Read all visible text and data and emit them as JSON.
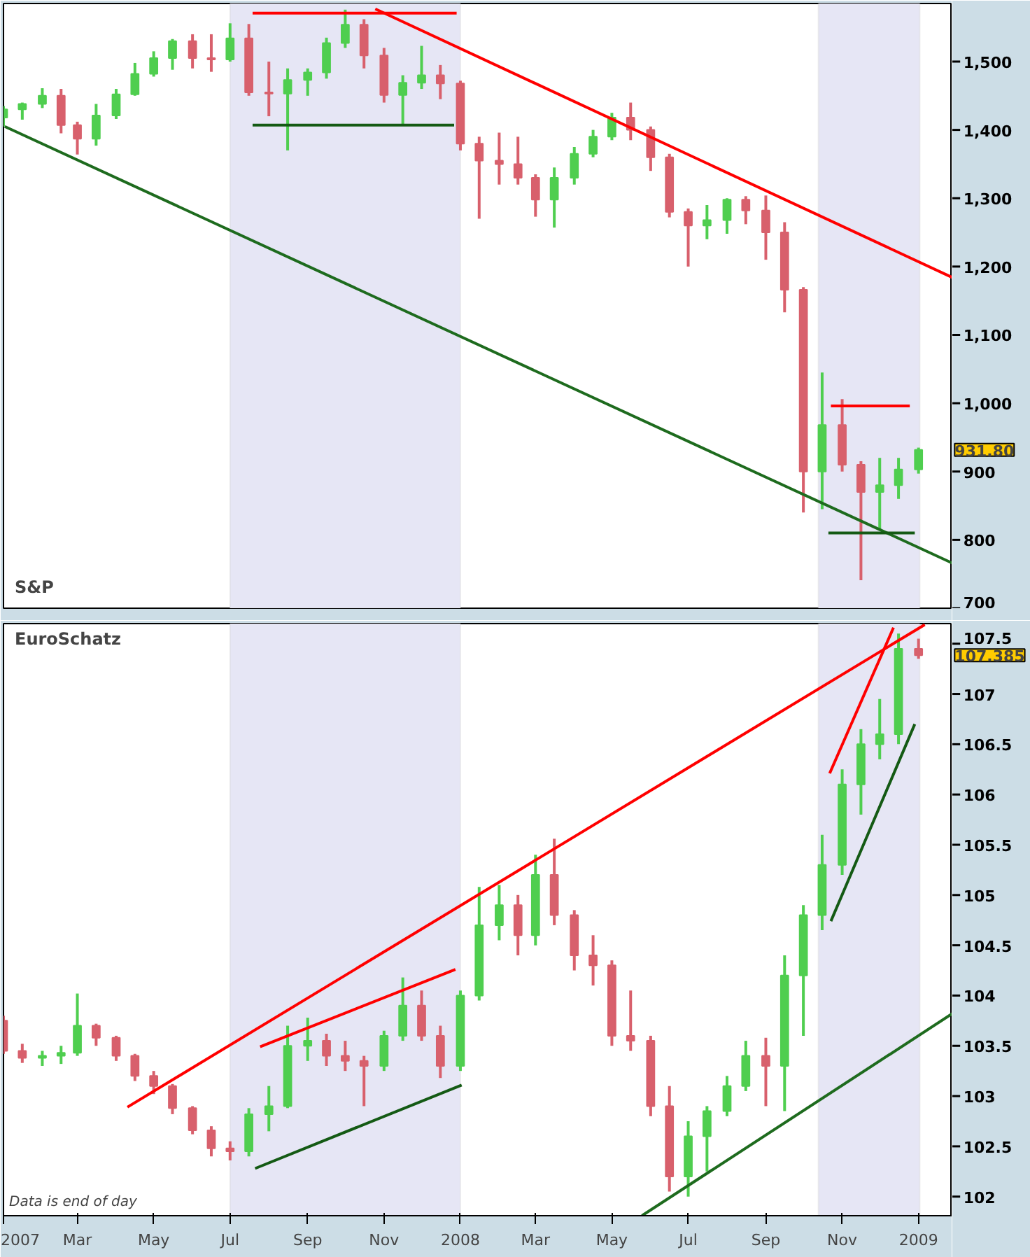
{
  "chart_data": [
    {
      "type": "candlestick",
      "title": "S&P",
      "tick_labels": "y",
      "grid": false,
      "x": [
        "2007-01-01",
        "2007-01-16",
        "2007-02-01",
        "2007-02-16",
        "2007-03-01",
        "2007-03-16",
        "2007-04-01",
        "2007-04-16",
        "2007-05-01",
        "2007-05-16",
        "2007-06-01",
        "2007-06-16",
        "2007-07-01",
        "2007-07-16",
        "2007-08-01",
        "2007-08-16",
        "2007-09-01",
        "2007-09-16",
        "2007-10-01",
        "2007-10-16",
        "2007-11-01",
        "2007-11-16",
        "2007-12-01",
        "2007-12-16",
        "2008-01-01",
        "2008-01-16",
        "2008-02-01",
        "2008-02-16",
        "2008-03-01",
        "2008-03-16",
        "2008-04-01",
        "2008-04-16",
        "2008-05-01",
        "2008-05-16",
        "2008-06-01",
        "2008-06-16",
        "2008-07-01",
        "2008-07-16",
        "2008-08-01",
        "2008-08-16",
        "2008-09-01",
        "2008-09-16",
        "2008-10-01",
        "2008-10-16",
        "2008-11-01",
        "2008-11-16",
        "2008-12-01",
        "2008-12-16",
        "2009-01-01"
      ],
      "ohlc": [
        [
          1418,
          1435,
          1405,
          1430
        ],
        [
          1430,
          1440,
          1415,
          1438
        ],
        [
          1438,
          1461,
          1432,
          1450
        ],
        [
          1450,
          1460,
          1395,
          1407
        ],
        [
          1407,
          1412,
          1364,
          1387
        ],
        [
          1387,
          1438,
          1377,
          1421
        ],
        [
          1421,
          1460,
          1416,
          1452
        ],
        [
          1452,
          1498,
          1450,
          1482
        ],
        [
          1482,
          1515,
          1478,
          1505
        ],
        [
          1505,
          1533,
          1488,
          1530
        ],
        [
          1530,
          1540,
          1490,
          1505
        ],
        [
          1505,
          1540,
          1485,
          1503
        ],
        [
          1503,
          1556,
          1500,
          1534
        ],
        [
          1534,
          1555,
          1450,
          1455
        ],
        [
          1455,
          1500,
          1420,
          1453
        ],
        [
          1453,
          1490,
          1370,
          1473
        ],
        [
          1473,
          1490,
          1450,
          1484
        ],
        [
          1484,
          1535,
          1475,
          1527
        ],
        [
          1527,
          1576,
          1520,
          1554
        ],
        [
          1554,
          1562,
          1490,
          1509
        ],
        [
          1509,
          1520,
          1440,
          1451
        ],
        [
          1451,
          1480,
          1407,
          1469
        ],
        [
          1469,
          1523,
          1460,
          1480
        ],
        [
          1480,
          1495,
          1445,
          1468
        ],
        [
          1468,
          1472,
          1370,
          1380
        ],
        [
          1380,
          1390,
          1270,
          1355
        ],
        [
          1355,
          1396,
          1320,
          1350
        ],
        [
          1350,
          1390,
          1320,
          1330
        ],
        [
          1330,
          1335,
          1273,
          1298
        ],
        [
          1298,
          1345,
          1257,
          1330
        ],
        [
          1330,
          1375,
          1320,
          1365
        ],
        [
          1365,
          1400,
          1360,
          1390
        ],
        [
          1390,
          1425,
          1385,
          1418
        ],
        [
          1418,
          1440,
          1385,
          1400
        ],
        [
          1400,
          1405,
          1340,
          1360
        ],
        [
          1360,
          1365,
          1272,
          1280
        ],
        [
          1280,
          1285,
          1200,
          1260
        ],
        [
          1260,
          1290,
          1240,
          1268
        ],
        [
          1268,
          1300,
          1248,
          1298
        ],
        [
          1298,
          1303,
          1262,
          1282
        ],
        [
          1282,
          1304,
          1210,
          1250
        ],
        [
          1250,
          1265,
          1133,
          1166
        ],
        [
          1166,
          1170,
          840,
          900
        ],
        [
          900,
          1045,
          845,
          968
        ],
        [
          968,
          1006,
          900,
          910
        ],
        [
          910,
          915,
          741,
          870
        ],
        [
          870,
          920,
          815,
          880
        ],
        [
          880,
          920,
          860,
          903
        ],
        [
          903,
          935,
          897,
          931.8
        ]
      ],
      "colors": [
        "#4fce4f",
        "#4fce4f",
        "#4fce4f",
        "#d8606c",
        "#d8606c",
        "#4fce4f",
        "#4fce4f",
        "#4fce4f",
        "#4fce4f",
        "#4fce4f",
        "#d8606c",
        "#d8606c",
        "#4fce4f",
        "#d8606c",
        "#d8606c",
        "#4fce4f",
        "#4fce4f",
        "#4fce4f",
        "#4fce4f",
        "#d8606c",
        "#d8606c",
        "#4fce4f",
        "#4fce4f",
        "#d8606c",
        "#d8606c",
        "#d8606c",
        "#d8606c",
        "#d8606c",
        "#d8606c",
        "#4fce4f",
        "#4fce4f",
        "#4fce4f",
        "#4fce4f",
        "#d8606c",
        "#d8606c",
        "#d8606c",
        "#d8606c",
        "#4fce4f",
        "#4fce4f",
        "#d8606c",
        "#d8606c",
        "#d8606c",
        "#d8606c",
        "#4fce4f",
        "#d8606c",
        "#d8606c",
        "#4fce4f",
        "#4fce4f",
        "#4fce4f"
      ],
      "series": [
        {
          "type": "line",
          "color": "#ff0000",
          "x": [
            "2007-10-25",
            "2009-01-28"
          ],
          "values": [
            1577,
            1184
          ]
        },
        {
          "type": "line",
          "color": "#1e6b1e",
          "x": [
            "2007-01-02",
            "2009-01-28"
          ],
          "values": [
            1405,
            766
          ]
        },
        {
          "type": "line",
          "color": "#ff0000",
          "x": [
            "2007-07-19",
            "2007-12-29"
          ],
          "values": [
            1571,
            1571
          ]
        },
        {
          "type": "line",
          "color": "#145a14",
          "x": [
            "2007-07-19",
            "2007-12-27"
          ],
          "values": [
            1407,
            1407
          ]
        },
        {
          "type": "line",
          "color": "#ff0000",
          "x": [
            "2008-10-23",
            "2008-12-25"
          ],
          "values": [
            996,
            996
          ]
        },
        {
          "type": "line",
          "color": "#145a14",
          "x": [
            "2008-10-21",
            "2008-12-29"
          ],
          "values": [
            810,
            810
          ]
        }
      ],
      "bands": [
        {
          "axis": "x",
          "from": "2007-07-01",
          "to": "2008-01-01",
          "color": "#e6e6f5"
        },
        {
          "axis": "x",
          "from": "2008-10-13",
          "to": "2009-01-02",
          "color": "#e6e6f5"
        }
      ],
      "annotations": [
        "931.80"
      ],
      "xlim": [
        "2007-01-01",
        "2009-01-28"
      ],
      "ylim": [
        700,
        1585
      ],
      "yticks": [
        700,
        800,
        900,
        {
          "value": 1000,
          "label": "1,000"
        },
        {
          "value": 1100,
          "label": "1,100"
        },
        {
          "value": 1200,
          "label": "1,200"
        },
        {
          "value": 1300,
          "label": "1,300"
        },
        {
          "value": 1400,
          "label": "1,400"
        },
        {
          "value": 1500,
          "label": "1,500"
        }
      ]
    },
    {
      "type": "candlestick",
      "title": "EuroSchatz",
      "grid": false,
      "x": [
        "2007-01-01",
        "2007-01-16",
        "2007-02-01",
        "2007-02-16",
        "2007-03-01",
        "2007-03-16",
        "2007-04-01",
        "2007-04-16",
        "2007-05-01",
        "2007-05-16",
        "2007-06-01",
        "2007-06-16",
        "2007-07-01",
        "2007-07-16",
        "2007-08-01",
        "2007-08-16",
        "2007-09-01",
        "2007-09-16",
        "2007-10-01",
        "2007-10-16",
        "2007-11-01",
        "2007-11-16",
        "2007-12-01",
        "2007-12-16",
        "2008-01-01",
        "2008-01-16",
        "2008-02-01",
        "2008-02-16",
        "2008-03-01",
        "2008-03-16",
        "2008-04-01",
        "2008-04-16",
        "2008-05-01",
        "2008-05-16",
        "2008-06-01",
        "2008-06-16",
        "2008-07-01",
        "2008-07-16",
        "2008-08-01",
        "2008-08-16",
        "2008-09-01",
        "2008-09-16",
        "2008-10-01",
        "2008-10-16",
        "2008-11-01",
        "2008-11-16",
        "2008-12-01",
        "2008-12-16",
        "2009-01-01"
      ],
      "ohlc": [
        [
          103.75,
          103.8,
          103.42,
          103.45
        ],
        [
          103.45,
          103.52,
          103.33,
          103.38
        ],
        [
          103.38,
          103.45,
          103.3,
          103.4
        ],
        [
          103.4,
          103.5,
          103.32,
          103.43
        ],
        [
          103.43,
          104.02,
          103.4,
          103.7
        ],
        [
          103.7,
          103.72,
          103.5,
          103.58
        ],
        [
          103.58,
          103.6,
          103.35,
          103.4
        ],
        [
          103.4,
          103.42,
          103.15,
          103.2
        ],
        [
          103.2,
          103.25,
          103.02,
          103.1
        ],
        [
          103.1,
          103.12,
          102.82,
          102.88
        ],
        [
          102.88,
          102.9,
          102.62,
          102.66
        ],
        [
          102.66,
          102.7,
          102.4,
          102.48
        ],
        [
          102.48,
          102.55,
          102.36,
          102.45
        ],
        [
          102.45,
          102.88,
          102.4,
          102.82
        ],
        [
          102.82,
          103.1,
          102.65,
          102.9
        ],
        [
          102.9,
          103.7,
          102.88,
          103.5
        ],
        [
          103.5,
          103.78,
          103.35,
          103.55
        ],
        [
          103.55,
          103.62,
          103.3,
          103.4
        ],
        [
          103.4,
          103.55,
          103.25,
          103.35
        ],
        [
          103.35,
          103.4,
          102.9,
          103.3
        ],
        [
          103.3,
          103.65,
          103.25,
          103.6
        ],
        [
          103.6,
          104.18,
          103.55,
          103.9
        ],
        [
          103.9,
          104.05,
          103.55,
          103.6
        ],
        [
          103.6,
          103.7,
          103.18,
          103.3
        ],
        [
          103.3,
          104.05,
          103.25,
          104.0
        ],
        [
          104.0,
          105.08,
          103.95,
          104.7
        ],
        [
          104.7,
          105.1,
          104.55,
          104.9
        ],
        [
          104.9,
          105.0,
          104.4,
          104.6
        ],
        [
          104.6,
          105.4,
          104.5,
          105.2
        ],
        [
          105.2,
          105.56,
          104.7,
          104.8
        ],
        [
          104.8,
          104.85,
          104.25,
          104.4
        ],
        [
          104.4,
          104.6,
          104.1,
          104.3
        ],
        [
          104.3,
          104.35,
          103.5,
          103.6
        ],
        [
          103.6,
          104.05,
          103.45,
          103.55
        ],
        [
          103.55,
          103.6,
          102.8,
          102.9
        ],
        [
          102.9,
          103.1,
          102.05,
          102.2
        ],
        [
          102.2,
          102.75,
          102.0,
          102.6
        ],
        [
          102.6,
          102.9,
          102.25,
          102.85
        ],
        [
          102.85,
          103.2,
          102.8,
          103.1
        ],
        [
          103.1,
          103.55,
          103.05,
          103.4
        ],
        [
          103.4,
          103.58,
          102.9,
          103.3
        ],
        [
          103.3,
          104.4,
          102.85,
          104.2
        ],
        [
          104.2,
          104.9,
          103.6,
          104.8
        ],
        [
          104.8,
          105.6,
          104.65,
          105.3
        ],
        [
          105.3,
          106.25,
          105.2,
          106.1
        ],
        [
          106.1,
          106.65,
          105.8,
          106.5
        ],
        [
          106.5,
          106.95,
          106.35,
          106.6
        ],
        [
          106.6,
          107.6,
          106.5,
          107.45
        ],
        [
          107.45,
          107.55,
          107.35,
          107.385
        ]
      ],
      "colors": [
        "#d8606c",
        "#d8606c",
        "#4fce4f",
        "#4fce4f",
        "#4fce4f",
        "#d8606c",
        "#d8606c",
        "#d8606c",
        "#d8606c",
        "#d8606c",
        "#d8606c",
        "#d8606c",
        "#d8606c",
        "#4fce4f",
        "#4fce4f",
        "#4fce4f",
        "#4fce4f",
        "#d8606c",
        "#d8606c",
        "#d8606c",
        "#4fce4f",
        "#4fce4f",
        "#d8606c",
        "#d8606c",
        "#4fce4f",
        "#4fce4f",
        "#4fce4f",
        "#d8606c",
        "#4fce4f",
        "#d8606c",
        "#d8606c",
        "#d8606c",
        "#d8606c",
        "#d8606c",
        "#d8606c",
        "#d8606c",
        "#4fce4f",
        "#4fce4f",
        "#4fce4f",
        "#4fce4f",
        "#d8606c",
        "#4fce4f",
        "#4fce4f",
        "#4fce4f",
        "#4fce4f",
        "#4fce4f",
        "#4fce4f",
        "#4fce4f",
        "#d8606c"
      ],
      "series": [
        {
          "type": "line",
          "color": "#ff0000",
          "x": [
            "2007-04-10",
            "2009-01-06"
          ],
          "values": [
            102.89,
            107.69
          ]
        },
        {
          "type": "line",
          "color": "#1e6b1e",
          "x": [
            "2008-05-25",
            "2009-01-28"
          ],
          "values": [
            101.81,
            103.82
          ]
        },
        {
          "type": "line",
          "color": "#ff0000",
          "x": [
            "2007-07-25",
            "2007-12-28"
          ],
          "values": [
            103.49,
            104.26
          ]
        },
        {
          "type": "line",
          "color": "#145a14",
          "x": [
            "2007-07-21",
            "2008-01-02"
          ],
          "values": [
            102.28,
            103.11
          ]
        },
        {
          "type": "line",
          "color": "#ff0000",
          "x": [
            "2008-10-22",
            "2008-12-12"
          ],
          "values": [
            106.21,
            107.66
          ]
        },
        {
          "type": "line",
          "color": "#145a14",
          "x": [
            "2008-10-23",
            "2008-12-29"
          ],
          "values": [
            104.74,
            106.7
          ]
        }
      ],
      "bands": [
        {
          "axis": "x",
          "from": "2007-07-01",
          "to": "2008-01-01",
          "color": "#e6e6f5"
        },
        {
          "axis": "x",
          "from": "2008-10-13",
          "to": "2009-01-02",
          "color": "#e6e6f5"
        }
      ],
      "annotations": [
        "107.385",
        "Data is end of day"
      ],
      "xlim": [
        "2007-01-01",
        "2009-01-28"
      ],
      "ylim": [
        101.81,
        107.7
      ],
      "xticks": [
        {
          "value": "2007-01-01",
          "label": "2007"
        },
        {
          "value": "2007-03-01",
          "label": "Mar"
        },
        {
          "value": "2007-05-01",
          "label": "May"
        },
        {
          "value": "2007-07-01",
          "label": "Jul"
        },
        {
          "value": "2007-09-01",
          "label": "Sep"
        },
        {
          "value": "2007-11-01",
          "label": "Nov"
        },
        {
          "value": "2008-01-01",
          "label": "2008"
        },
        {
          "value": "2008-03-01",
          "label": "Mar"
        },
        {
          "value": "2008-05-01",
          "label": "May"
        },
        {
          "value": "2008-07-01",
          "label": "Jul"
        },
        {
          "value": "2008-09-01",
          "label": "Sep"
        },
        {
          "value": "2008-11-01",
          "label": "Nov"
        },
        {
          "value": "2009-01-01",
          "label": "2009"
        }
      ],
      "yticks": [
        102,
        102.5,
        103,
        103.5,
        104,
        104.5,
        105,
        105.5,
        106,
        106.5,
        107,
        107.5
      ]
    }
  ]
}
